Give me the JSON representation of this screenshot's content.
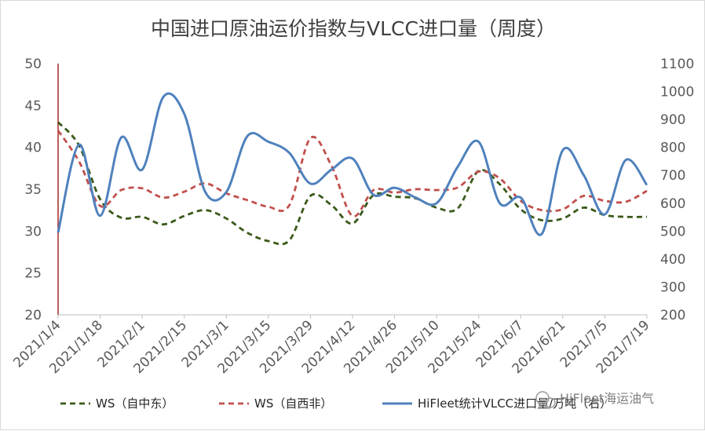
{
  "chart_data": {
    "type": "line",
    "title": "中国进口原油运价指数与VLCC进口量（周度）",
    "x_ticks": [
      "2021/1/4",
      "2021/1/18",
      "2021/2/1",
      "2021/2/15",
      "2021/3/1",
      "2021/3/15",
      "2021/3/29",
      "2021/4/12",
      "2021/4/26",
      "2021/5/10",
      "2021/5/24",
      "2021/6/7",
      "2021/6/21",
      "2021/7/5",
      "2021/7/19"
    ],
    "x": [
      "2021/1/4",
      "2021/1/11",
      "2021/1/18",
      "2021/1/25",
      "2021/2/1",
      "2021/2/8",
      "2021/2/15",
      "2021/2/22",
      "2021/3/1",
      "2021/3/8",
      "2021/3/15",
      "2021/3/22",
      "2021/3/29",
      "2021/4/5",
      "2021/4/12",
      "2021/4/19",
      "2021/4/26",
      "2021/5/3",
      "2021/5/10",
      "2021/5/17",
      "2021/5/24",
      "2021/5/31",
      "2021/6/7",
      "2021/6/14",
      "2021/6/21",
      "2021/6/28",
      "2021/7/5",
      "2021/7/12",
      "2021/7/19"
    ],
    "y_left": {
      "ylim": [
        20,
        50
      ],
      "ticks": [
        "20",
        "25",
        "30",
        "35",
        "40",
        "45",
        "50"
      ]
    },
    "y_right": {
      "ylim": [
        200,
        1100
      ],
      "ticks": [
        "200",
        "300",
        "400",
        "500",
        "600",
        "700",
        "800",
        "900",
        "1000",
        "1100"
      ]
    },
    "series": [
      {
        "name": "WS（自中东）",
        "axis": "left",
        "color": "#3a5a1a",
        "dash": "dash",
        "values": [
          43.0,
          40.2,
          33.8,
          31.6,
          31.7,
          30.8,
          31.8,
          32.5,
          31.5,
          29.8,
          28.8,
          28.9,
          34.2,
          33.1,
          30.9,
          34.3,
          34.1,
          33.9,
          32.8,
          32.7,
          37.2,
          35.6,
          32.6,
          31.3,
          31.5,
          32.8,
          31.9,
          31.7,
          31.7
        ]
      },
      {
        "name": "WS（自西非）",
        "axis": "left",
        "color": "#c0504d",
        "dash": "dash",
        "values": [
          42.0,
          38.3,
          33.0,
          34.9,
          35.1,
          34.0,
          34.7,
          35.7,
          34.5,
          33.7,
          32.9,
          33.1,
          41.1,
          37.8,
          31.8,
          34.9,
          34.6,
          35.0,
          34.9,
          35.2,
          37.1,
          36.3,
          33.6,
          32.5,
          32.6,
          34.2,
          33.6,
          33.5,
          34.8
        ]
      },
      {
        "name": "HiFleet统计VLCC进口量/万吨（右）",
        "axis": "right",
        "color": "#4f81bd",
        "dash": "solid",
        "values": [
          495,
          810,
          555,
          835,
          720,
          980,
          920,
          640,
          640,
          840,
          820,
          780,
          670,
          720,
          760,
          630,
          655,
          620,
          600,
          730,
          820,
          600,
          620,
          490,
          790,
          700,
          560,
          755,
          665
        ]
      }
    ],
    "watermark": "HiFleet海运油气"
  }
}
